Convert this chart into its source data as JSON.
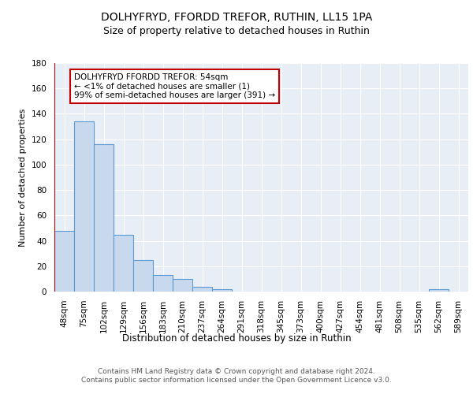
{
  "title1": "DOLHYFRYD, FFORDD TREFOR, RUTHIN, LL15 1PA",
  "title2": "Size of property relative to detached houses in Ruthin",
  "xlabel": "Distribution of detached houses by size in Ruthin",
  "ylabel": "Number of detached properties",
  "categories": [
    "48sqm",
    "75sqm",
    "102sqm",
    "129sqm",
    "156sqm",
    "183sqm",
    "210sqm",
    "237sqm",
    "264sqm",
    "291sqm",
    "318sqm",
    "345sqm",
    "373sqm",
    "400sqm",
    "427sqm",
    "454sqm",
    "481sqm",
    "508sqm",
    "535sqm",
    "562sqm",
    "589sqm"
  ],
  "values": [
    48,
    134,
    116,
    45,
    25,
    13,
    10,
    4,
    2,
    0,
    0,
    0,
    0,
    0,
    0,
    0,
    0,
    0,
    0,
    2,
    0
  ],
  "bar_color": "#c9d9ed",
  "bar_edge_color": "#5b9bd5",
  "annotation_line_color": "#c00000",
  "annotation_box_text": "DOLHYFRYD FFORDD TREFOR: 54sqm\n← <1% of detached houses are smaller (1)\n99% of semi-detached houses are larger (391) →",
  "annotation_box_color": "#ffffff",
  "annotation_box_edge_color": "#c00000",
  "ylim": [
    0,
    180
  ],
  "yticks": [
    0,
    20,
    40,
    60,
    80,
    100,
    120,
    140,
    160,
    180
  ],
  "background_color": "#e8eef5",
  "grid_color": "#ffffff",
  "footer_text": "Contains HM Land Registry data © Crown copyright and database right 2024.\nContains public sector information licensed under the Open Government Licence v3.0.",
  "title1_fontsize": 10,
  "title2_fontsize": 9,
  "xlabel_fontsize": 8.5,
  "ylabel_fontsize": 8,
  "tick_fontsize": 7.5,
  "annotation_fontsize": 7.5,
  "footer_fontsize": 6.5
}
